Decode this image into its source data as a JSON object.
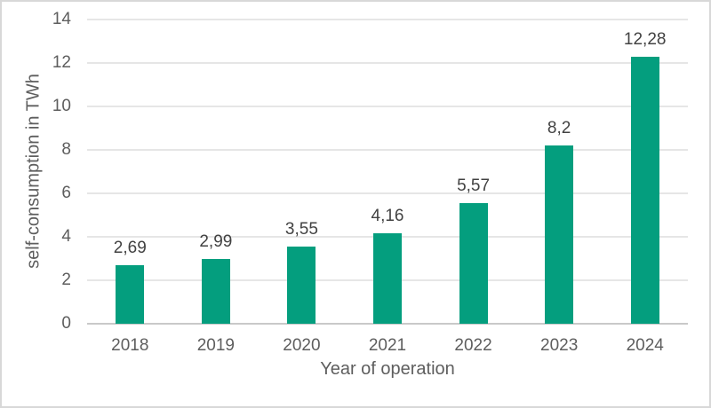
{
  "chart_data": {
    "type": "bar",
    "title": "",
    "xlabel": "Year of operation",
    "ylabel": "self-consumption in TWh",
    "categories": [
      "2018",
      "2019",
      "2020",
      "2021",
      "2022",
      "2023",
      "2024"
    ],
    "values": [
      2.69,
      2.99,
      3.55,
      4.16,
      5.57,
      8.2,
      12.28
    ],
    "value_labels": [
      "2,69",
      "2,99",
      "3,55",
      "4,16",
      "5,57",
      "8,2",
      "12,28"
    ],
    "ylim": [
      0,
      14
    ],
    "yticks": [
      0,
      2,
      4,
      6,
      8,
      10,
      12,
      14
    ],
    "grid": "horizontal-gridlines",
    "legend_position": "none",
    "decimal_separator": ",",
    "colors": {
      "bar": "#049E7E",
      "gridline": "#E6E6E6",
      "axis_line": "#C9C9C9",
      "tick_text": "#5E5E5E",
      "data_label_text": "#424242",
      "frame_border": "#D8D8D8",
      "background": "#FFFFFF"
    }
  }
}
